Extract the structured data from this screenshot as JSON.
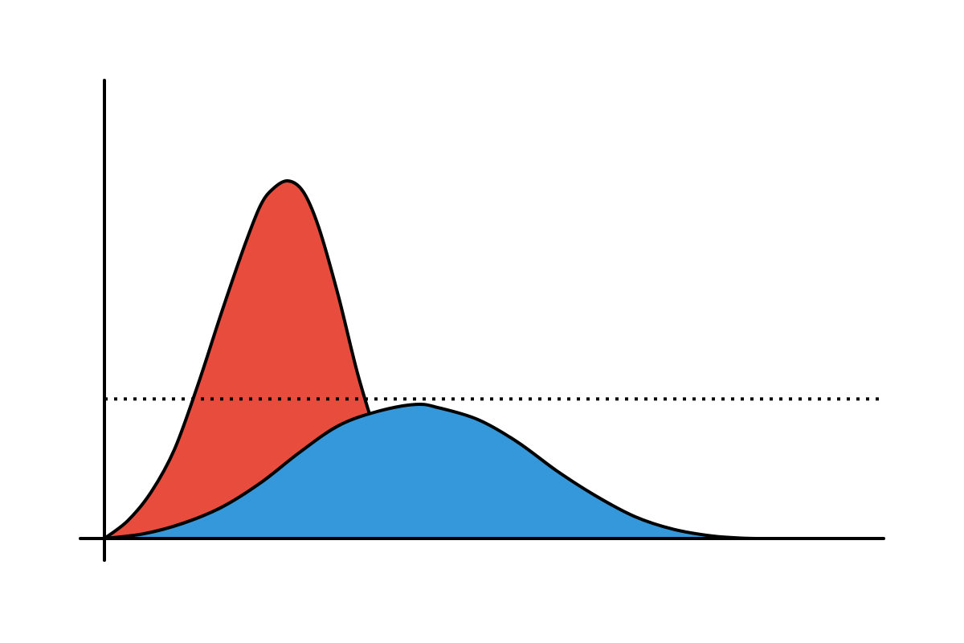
{
  "chart_data": {
    "type": "area",
    "title": "",
    "xlabel": "",
    "ylabel": "",
    "grid": false,
    "legend": "none",
    "axis_ticks": false,
    "xlim": [
      0,
      100
    ],
    "ylim": [
      0,
      100
    ],
    "threshold": {
      "y": 39,
      "style": "dotted",
      "color": "#000000"
    },
    "series": [
      {
        "color": "#e74c3c",
        "stroke": "#000000",
        "points": [
          [
            0,
            0
          ],
          [
            3,
            5
          ],
          [
            6,
            13
          ],
          [
            9,
            25
          ],
          [
            12,
            43
          ],
          [
            15,
            63
          ],
          [
            18,
            82
          ],
          [
            20,
            93
          ],
          [
            21.5,
            97.5
          ],
          [
            23.5,
            100
          ],
          [
            25.5,
            97
          ],
          [
            27.5,
            87
          ],
          [
            30,
            68
          ],
          [
            32.5,
            46
          ],
          [
            35,
            28
          ],
          [
            36,
            21
          ],
          [
            37,
            16
          ],
          [
            38,
            12
          ],
          [
            39,
            10
          ]
        ]
      },
      {
        "color": "#3498db",
        "stroke": "#000000",
        "points": [
          [
            0,
            0
          ],
          [
            5,
            1.3
          ],
          [
            10,
            4.2
          ],
          [
            15,
            8.7
          ],
          [
            20,
            15.5
          ],
          [
            25,
            24
          ],
          [
            30,
            31.5
          ],
          [
            35,
            35.5
          ],
          [
            40,
            37.5
          ],
          [
            43,
            36.5
          ],
          [
            48,
            33.2
          ],
          [
            53,
            27
          ],
          [
            58,
            19
          ],
          [
            63,
            12
          ],
          [
            68,
            6.2
          ],
          [
            73,
            2.6
          ],
          [
            78,
            0.7
          ],
          [
            82,
            0.1
          ],
          [
            85,
            0
          ]
        ]
      }
    ]
  }
}
